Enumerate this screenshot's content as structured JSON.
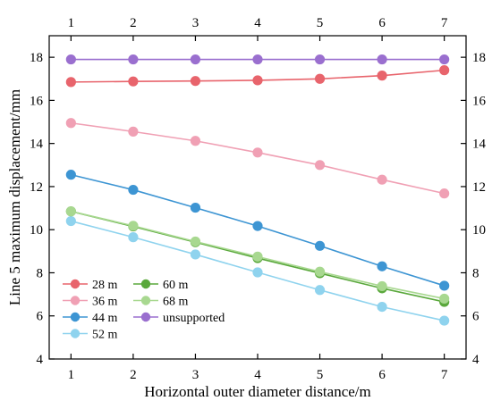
{
  "chart_data": {
    "type": "line",
    "xlabel": "Horizontal outer diameter distance/m",
    "ylabel": "Line 5 maximum displacement/mm",
    "x": [
      1,
      2,
      3,
      4,
      5,
      6,
      7
    ],
    "xlim": [
      0.65,
      7.35
    ],
    "ylim": [
      4,
      19
    ],
    "xticks": [
      1,
      2,
      3,
      4,
      5,
      6,
      7
    ],
    "yticks": [
      4,
      6,
      8,
      10,
      12,
      14,
      16,
      18
    ],
    "mirror_axes": "top-and-right",
    "legend_placement": "lower-left",
    "series": [
      {
        "name": "28 m",
        "color": "#e8646c",
        "values": [
          16.85,
          16.88,
          16.9,
          16.93,
          17.0,
          17.15,
          17.4
        ]
      },
      {
        "name": "36 m",
        "color": "#f0a0b4",
        "values": [
          14.95,
          14.55,
          14.12,
          13.58,
          13.0,
          12.32,
          11.68
        ]
      },
      {
        "name": "44 m",
        "color": "#3d95d3",
        "values": [
          12.55,
          11.85,
          11.02,
          10.17,
          9.25,
          8.3,
          7.4
        ]
      },
      {
        "name": "52 m",
        "color": "#8fd3ee",
        "values": [
          10.4,
          9.65,
          8.85,
          8.02,
          7.2,
          6.42,
          5.78
        ]
      },
      {
        "name": "60 m",
        "color": "#5aa83c",
        "values": [
          10.85,
          10.15,
          9.42,
          8.68,
          7.98,
          7.28,
          6.65
        ]
      },
      {
        "name": "68 m",
        "color": "#a8d890",
        "values": [
          10.85,
          10.18,
          9.45,
          8.75,
          8.05,
          7.38,
          6.8
        ]
      },
      {
        "name": "unsupported",
        "color": "#9a6fcf",
        "values": [
          17.9,
          17.9,
          17.9,
          17.9,
          17.9,
          17.9,
          17.9
        ]
      }
    ]
  }
}
